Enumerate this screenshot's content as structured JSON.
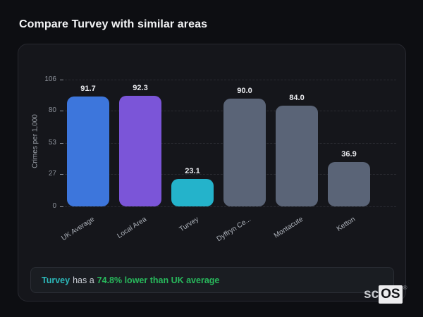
{
  "page": {
    "title": "Compare Turvey with similar areas"
  },
  "chart_data": {
    "type": "bar",
    "title": "",
    "categories": [
      "UK Average",
      "Local Area",
      "Turvey",
      "Dyffryn Ce...",
      "Montacute",
      "Ketton"
    ],
    "values": [
      91.7,
      92.3,
      23.1,
      90.0,
      84.0,
      36.9
    ],
    "value_labels": [
      "91.7",
      "92.3",
      "23.1",
      "90.0",
      "84.0",
      "36.9"
    ],
    "bar_colors": [
      "#3d76dc",
      "#7b55d8",
      "#24b3cb",
      "#5a6477",
      "#5a6477",
      "#5a6477"
    ],
    "xlabel": "",
    "ylabel": "Crimes per 1,000",
    "yticks": [
      0,
      27,
      53,
      80,
      106
    ],
    "ylim": [
      0,
      106
    ],
    "grid": "dashed-horizontal",
    "legend_position": "none"
  },
  "summary": {
    "area": "Turvey",
    "middle": "has a",
    "highlight": "74.8% lower than UK average",
    "area_color": "#2cb9ba",
    "highlight_color": "#28b95c"
  },
  "watermark": {
    "prefix": "sc",
    "boxed": "OS",
    "registered": "®"
  }
}
